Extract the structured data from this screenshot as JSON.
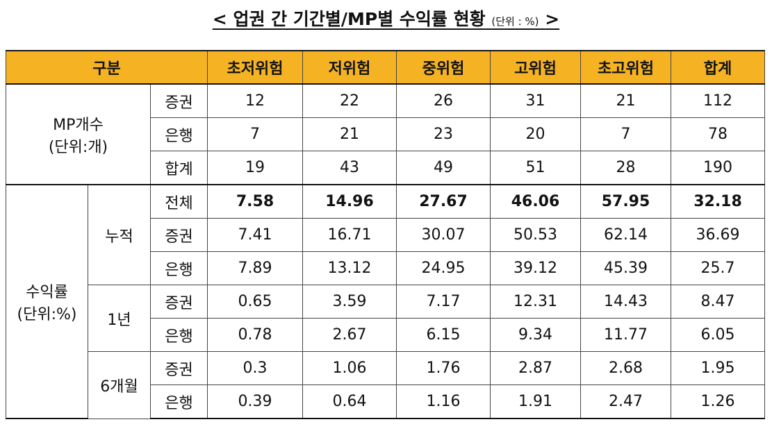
{
  "title": {
    "main": "< 업권 간 기간별/MP별 수익률 현황",
    "unit": "(단위 : %)",
    "close": ">"
  },
  "table": {
    "header": [
      "구분",
      "초저위험",
      "저위험",
      "중위험",
      "고위험",
      "초고위험",
      "합계"
    ],
    "groups": [
      {
        "label": [
          "MP개수",
          "(단위:개)"
        ],
        "subgroups": [
          {
            "label": null,
            "rows": [
              {
                "type": "증권",
                "values": [
                  12,
                  22,
                  26,
                  31,
                  21,
                  112
                ]
              },
              {
                "type": "은행",
                "values": [
                  7,
                  21,
                  23,
                  20,
                  7,
                  78
                ]
              },
              {
                "type": "합계",
                "values": [
                  19,
                  43,
                  49,
                  51,
                  28,
                  190
                ]
              }
            ]
          }
        ]
      },
      {
        "label": [
          "수익률",
          "(단위:%)"
        ],
        "subgroups": [
          {
            "label": "누적",
            "rows": [
              {
                "type": "전체",
                "values": [
                  7.58,
                  14.96,
                  27.67,
                  46.06,
                  57.95,
                  32.18
                ]
              },
              {
                "type": "증권",
                "values": [
                  7.41,
                  16.71,
                  30.07,
                  50.53,
                  62.14,
                  36.69
                ]
              },
              {
                "type": "은행",
                "values": [
                  7.89,
                  13.12,
                  24.95,
                  39.12,
                  45.39,
                  25.7
                ]
              }
            ]
          },
          {
            "label": "1년",
            "rows": [
              {
                "type": "증권",
                "values": [
                  0.65,
                  3.59,
                  7.17,
                  12.31,
                  14.43,
                  8.47
                ]
              },
              {
                "type": "은행",
                "values": [
                  0.78,
                  2.67,
                  6.15,
                  9.34,
                  11.77,
                  6.05
                ]
              }
            ]
          },
          {
            "label": "6개월",
            "rows": [
              {
                "type": "증권",
                "values": [
                  0.3,
                  1.06,
                  1.76,
                  2.87,
                  2.68,
                  1.95
                ]
              },
              {
                "type": "은행",
                "values": [
                  0.39,
                  0.64,
                  1.16,
                  1.91,
                  2.47,
                  1.26
                ]
              }
            ]
          }
        ]
      }
    ]
  }
}
